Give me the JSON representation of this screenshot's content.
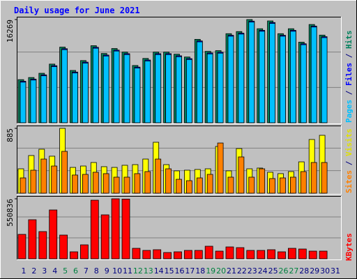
{
  "chart_data": [
    {
      "type": "bar",
      "title": "Daily usage for June 2021",
      "series": [
        {
          "name": "Hits",
          "color": "#00805c",
          "values": [
            6797,
            7131,
            7800,
            9247,
            11922,
            8245,
            9805,
            12145,
            10920,
            11700,
            11142,
            9025,
            10140,
            11142,
            11142,
            10808,
            10362,
            13148,
            11254,
            11365,
            14040,
            14374,
            16269,
            14820,
            16050,
            14040,
            14820,
            12702,
            15488,
            13817,
            null
          ]
        },
        {
          "name": "Files",
          "color": "#0000ff",
          "values": [
            6547,
            6881,
            7550,
            8997,
            11672,
            7995,
            9555,
            11895,
            10670,
            11450,
            10892,
            8775,
            9890,
            10892,
            10892,
            10558,
            10112,
            12898,
            11004,
            11115,
            13790,
            14124,
            16019,
            14570,
            15800,
            13790,
            14570,
            12452,
            15238,
            13567,
            null
          ]
        },
        {
          "name": "Pages",
          "color": "#00c0ff",
          "values": [
            6397,
            6731,
            7400,
            8847,
            11522,
            7845,
            9405,
            11745,
            10520,
            11300,
            10742,
            8625,
            9740,
            10742,
            10742,
            10408,
            9962,
            12748,
            10854,
            10965,
            13640,
            13974,
            15869,
            14420,
            15650,
            13640,
            14420,
            12302,
            15088,
            13417,
            null
          ]
        }
      ],
      "ylim": [
        0,
        16269
      ],
      "yticks": [
        16269
      ]
    },
    {
      "type": "bar",
      "series": [
        {
          "name": "Visits",
          "color": "#ffff00",
          "values": [
            333,
            514,
            600,
            505,
            885,
            352,
            371,
            419,
            362,
            352,
            381,
            390,
            466,
            695,
            390,
            305,
            314,
            324,
            333,
            638,
            305,
            609,
            333,
            343,
            286,
            267,
            295,
            428,
            733,
            790,
            null
          ]
        },
        {
          "name": "Sites",
          "color": "#ff8000",
          "values": [
            209,
            314,
            466,
            371,
            571,
            248,
            257,
            286,
            267,
            219,
            219,
            267,
            295,
            466,
            333,
            190,
            171,
            209,
            257,
            685,
            219,
            495,
            219,
            333,
            200,
            209,
            219,
            295,
            419,
            419,
            null
          ]
        }
      ],
      "ylim": [
        0,
        885
      ],
      "yticks": [
        885
      ]
    },
    {
      "type": "bar",
      "categories": [
        "1",
        "2",
        "3",
        "4",
        "5",
        "6",
        "7",
        "8",
        "9",
        "10",
        "11",
        "12",
        "13",
        "14",
        "15",
        "16",
        "17",
        "18",
        "19",
        "20",
        "21",
        "22",
        "23",
        "24",
        "25",
        "26",
        "27",
        "28",
        "29",
        "30",
        "31"
      ],
      "label_colors": [
        "#000080",
        "#000080",
        "#000080",
        "#000080",
        "#008040",
        "#008040",
        "#000080",
        "#000080",
        "#000080",
        "#000080",
        "#000080",
        "#008040",
        "#008040",
        "#000080",
        "#000080",
        "#000080",
        "#000080",
        "#000080",
        "#008040",
        "#008040",
        "#000080",
        "#000080",
        "#000080",
        "#000080",
        "#000080",
        "#008040",
        "#008040",
        "#000080",
        "#000080",
        "#000080",
        "#000080"
      ],
      "series": [
        {
          "name": "KBytes",
          "color": "#ff0000",
          "values": [
            224175,
            358680,
            249795,
            448350,
            217770,
            64050,
            128100,
            538020,
            403515,
            550836,
            548000,
            96075,
            76860,
            83265,
            57645,
            64050,
            76860,
            76860,
            115290,
            70455,
            108885,
            102480,
            76860,
            76860,
            83265,
            64050,
            96075,
            89670,
            70455,
            70455,
            null
          ]
        }
      ],
      "ylim": [
        0,
        550836
      ],
      "yticks": [
        550836
      ]
    }
  ]
}
